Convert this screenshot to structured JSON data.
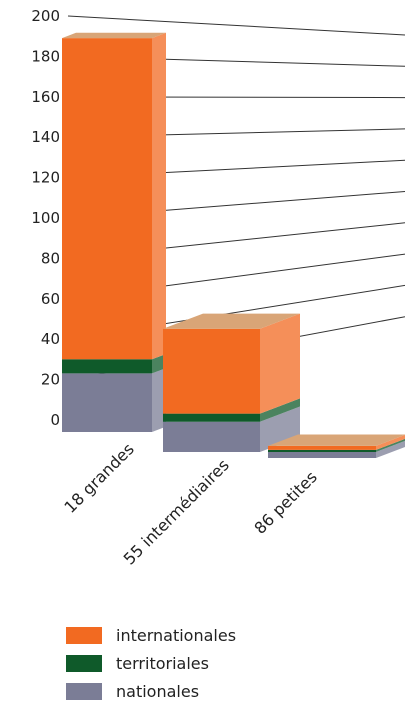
{
  "chart_data": {
    "type": "bar",
    "stacked": true,
    "three_d": true,
    "categories": [
      "18 grandes",
      "55 intermédiaires",
      "86 petites"
    ],
    "series": [
      {
        "name": "nationales",
        "color": "#7b7d96",
        "values": [
          29,
          15,
          3
        ]
      },
      {
        "name": "territoriales",
        "color": "#0f5a2a",
        "values": [
          7,
          4,
          1
        ]
      },
      {
        "name": "internationales",
        "color": "#f26a21",
        "values": [
          159,
          42,
          2
        ]
      }
    ],
    "y_ticks": [
      "0",
      "20",
      "40",
      "60",
      "80",
      "100",
      "120",
      "140",
      "160",
      "180",
      "200"
    ],
    "ylim": [
      0,
      200
    ],
    "grid": true,
    "legend_position": "bottom",
    "legend": [
      "internationales",
      "territoriales",
      "nationales"
    ]
  }
}
